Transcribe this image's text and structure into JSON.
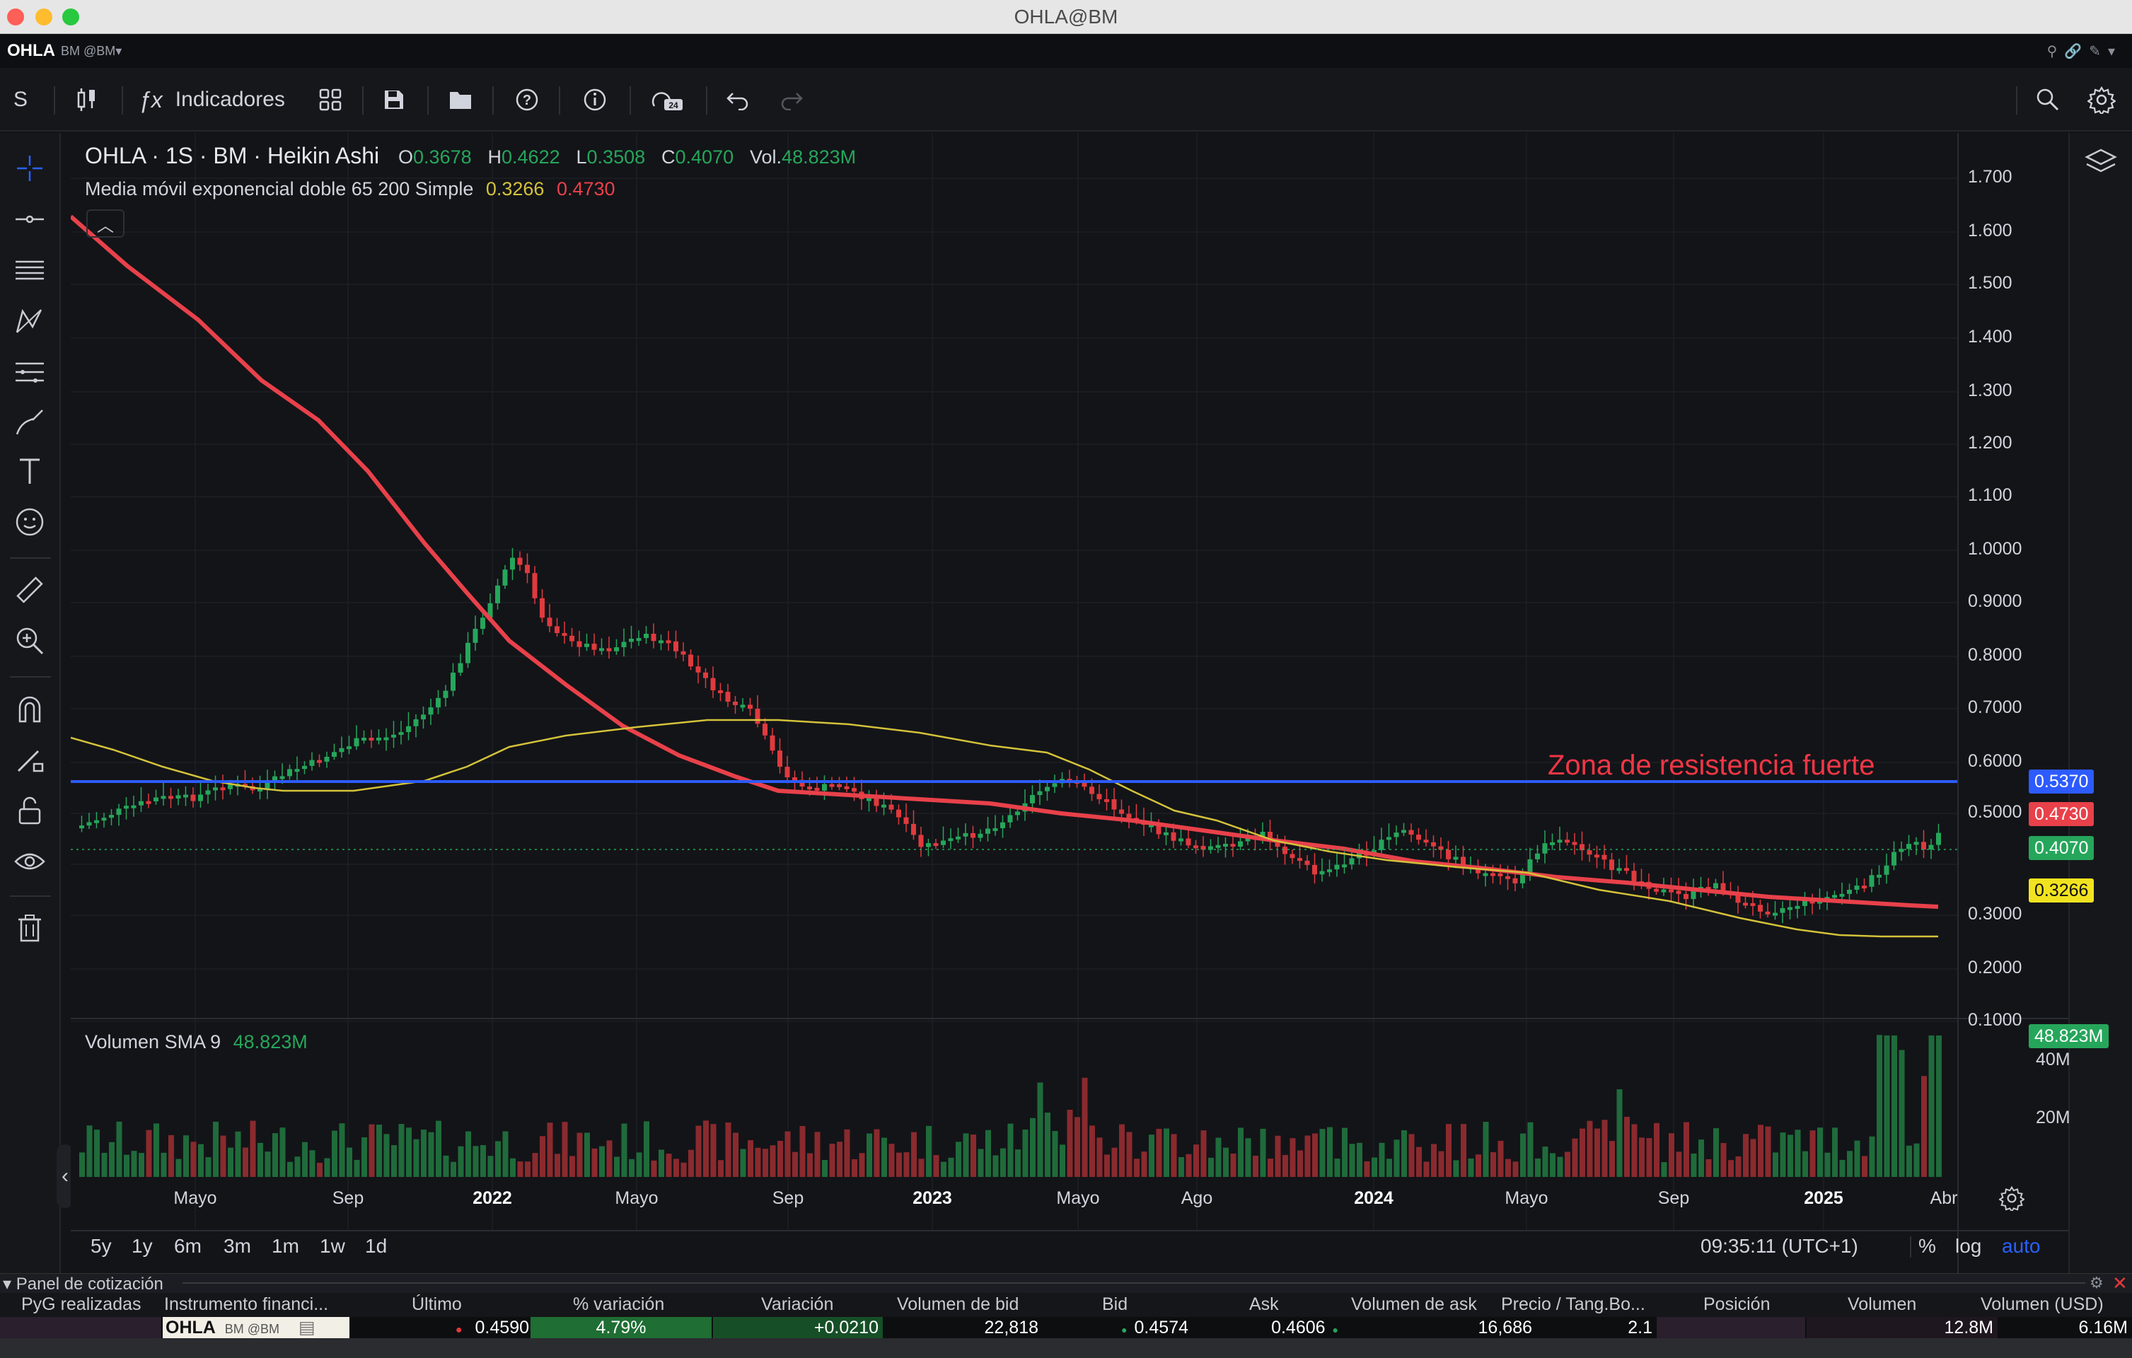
{
  "window": {
    "title": "OHLA@BM"
  },
  "symbol_bar": {
    "symbol": "OHLA",
    "suffix": "BM @BM▾"
  },
  "toolbar": {
    "interval": "S",
    "indicators_label": "Indicadores"
  },
  "legend": {
    "title": "OHLA · 1S · BM · Heikin Ashi",
    "o_label": "O",
    "o_value": "0.3678",
    "h_label": "H",
    "h_value": "0.4622",
    "l_label": "L",
    "l_value": "0.3508",
    "c_label": "C",
    "c_value": "0.4070",
    "vol_label": "Vol.",
    "vol_value": "48.823M",
    "ema_label": "Media móvil exponencial doble 65 200 Simple",
    "ema_value1": "0.3266",
    "ema_value2": "0.4730"
  },
  "annotation": {
    "text": "Zona de resistencia fuerte",
    "color": "#f23645"
  },
  "colors": {
    "up": "#26a65b",
    "down": "#e03a3e",
    "ema_fast": "#d4c23a",
    "ema_slow": "#e8414a",
    "resistance": "#2d5bff",
    "accent": "#2962ff"
  },
  "price_axis": [
    "1.700",
    "1.600",
    "1.500",
    "1.400",
    "1.300",
    "1.200",
    "1.100",
    "1.0000",
    "0.9000",
    "0.8000",
    "0.7000",
    "0.6000",
    "0.5000",
    "0.3000",
    "0.2000",
    "0.1000"
  ],
  "price_tags": {
    "resistance": "0.5370",
    "ema_slow": "0.4730",
    "last": "0.4070",
    "ema_fast": "0.3266"
  },
  "volume_pane": {
    "label": "Volumen SMA 9",
    "value": "48.823M",
    "tag": "48.823M",
    "axis": [
      "40M",
      "20M"
    ]
  },
  "time_axis": [
    {
      "label": "Mayo",
      "bold": false
    },
    {
      "label": "Sep",
      "bold": false
    },
    {
      "label": "2022",
      "bold": true
    },
    {
      "label": "Mayo",
      "bold": false
    },
    {
      "label": "Sep",
      "bold": false
    },
    {
      "label": "2023",
      "bold": true
    },
    {
      "label": "Mayo",
      "bold": false
    },
    {
      "label": "Ago",
      "bold": false
    },
    {
      "label": "2024",
      "bold": true
    },
    {
      "label": "Mayo",
      "bold": false
    },
    {
      "label": "Sep",
      "bold": false
    },
    {
      "label": "2025",
      "bold": true
    },
    {
      "label": "Abr",
      "bold": false
    }
  ],
  "ranges": [
    "5y",
    "1y",
    "6m",
    "3m",
    "1m",
    "1w",
    "1d"
  ],
  "status": {
    "time": "09:35:11 (UTC+1)",
    "pct": "%",
    "log": "log",
    "auto": "auto"
  },
  "panel": {
    "title": "Panel de cotización",
    "columns": [
      "PyG realizadas",
      "Instrumento financi...",
      "Último",
      "% variación",
      "Variación",
      "Volumen de bid",
      "Bid",
      "Ask",
      "Volumen de ask",
      "Precio / Tang.Bo...",
      "Posición",
      "Volumen",
      "Volumen (USD)"
    ],
    "row": {
      "instrument": "OHLA",
      "instrument_sub": "BM @BM",
      "last": "0.4590",
      "pct_change": "4.79%",
      "change": "+0.0210",
      "bid_volume": "22,818",
      "bid": "0.4574",
      "ask": "0.4606",
      "ask_volume": "16,686",
      "price_book": "2.1",
      "volume": "12.8M",
      "volume_usd": "6.16M"
    }
  }
}
